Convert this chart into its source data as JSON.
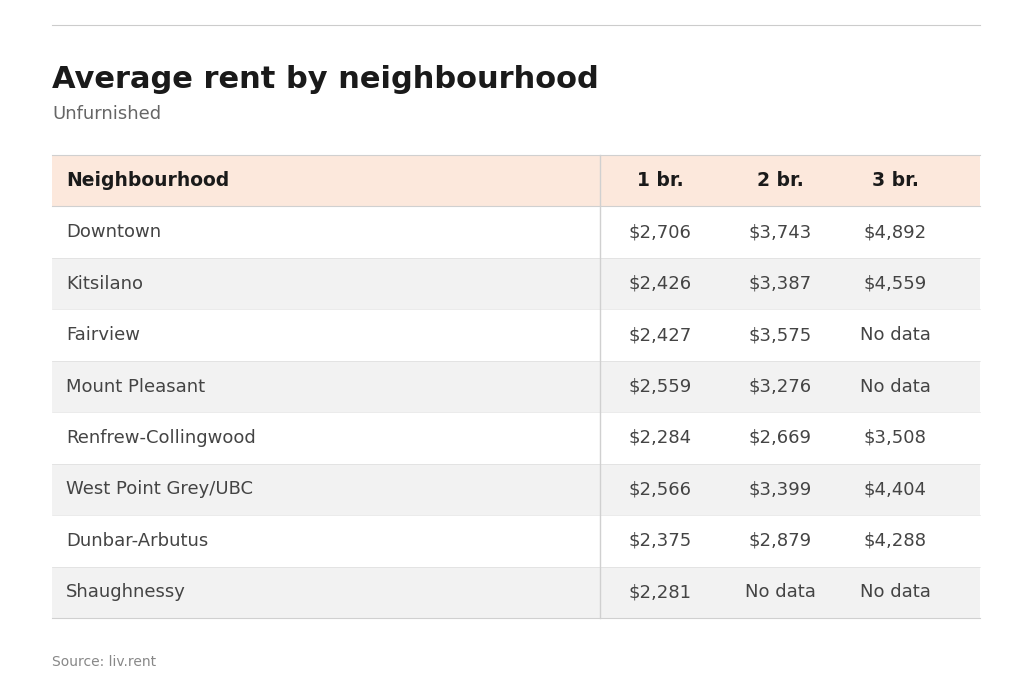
{
  "title": "Average rent by neighbourhood",
  "subtitle": "Unfurnished",
  "source": "Source: liv.rent",
  "columns": [
    "Neighbourhood",
    "1 br.",
    "2 br.",
    "3 br."
  ],
  "rows": [
    [
      "Downtown",
      "$2,706",
      "$3,743",
      "$4,892"
    ],
    [
      "Kitsilano",
      "$2,426",
      "$3,387",
      "$4,559"
    ],
    [
      "Fairview",
      "$2,427",
      "$3,575",
      "No data"
    ],
    [
      "Mount Pleasant",
      "$2,559",
      "$3,276",
      "No data"
    ],
    [
      "Renfrew-Collingwood",
      "$2,284",
      "$2,669",
      "$3,508"
    ],
    [
      "West Point Grey/UBC",
      "$2,566",
      "$3,399",
      "$4,404"
    ],
    [
      "Dunbar-Arbutus",
      "$2,375",
      "$2,879",
      "$4,288"
    ],
    [
      "Shaughnessy",
      "$2,281",
      "No data",
      "No data"
    ]
  ],
  "header_bg": "#fce8dc",
  "row_bg_even": "#f2f2f2",
  "row_bg_odd": "#ffffff",
  "bg_color": "#ffffff",
  "header_text_color": "#1a1a1a",
  "cell_text_color": "#444444",
  "title_color": "#1a1a1a",
  "subtitle_color": "#666666",
  "source_color": "#888888",
  "divider_color": "#d0d0d0",
  "top_border_color": "#cccccc"
}
